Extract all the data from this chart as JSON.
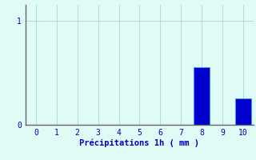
{
  "categories": [
    0,
    1,
    2,
    3,
    4,
    5,
    6,
    7,
    8,
    9,
    10
  ],
  "values": [
    0,
    0,
    0,
    0,
    0,
    0,
    0,
    0,
    0.55,
    0,
    0.25
  ],
  "bar_color": "#0000CC",
  "bar_edge_color": "#3399FF",
  "background_color": "#E0FAF5",
  "grid_color": "#AADDDD",
  "axis_color": "#666666",
  "text_color": "#0000BB",
  "xlabel": "Précipitations 1h ( mm )",
  "yticks": [
    0,
    1
  ],
  "ylim": [
    0,
    1.15
  ],
  "xlim": [
    -0.5,
    10.5
  ],
  "xlabel_fontsize": 7.5,
  "tick_fontsize": 7,
  "bar_width": 0.75
}
